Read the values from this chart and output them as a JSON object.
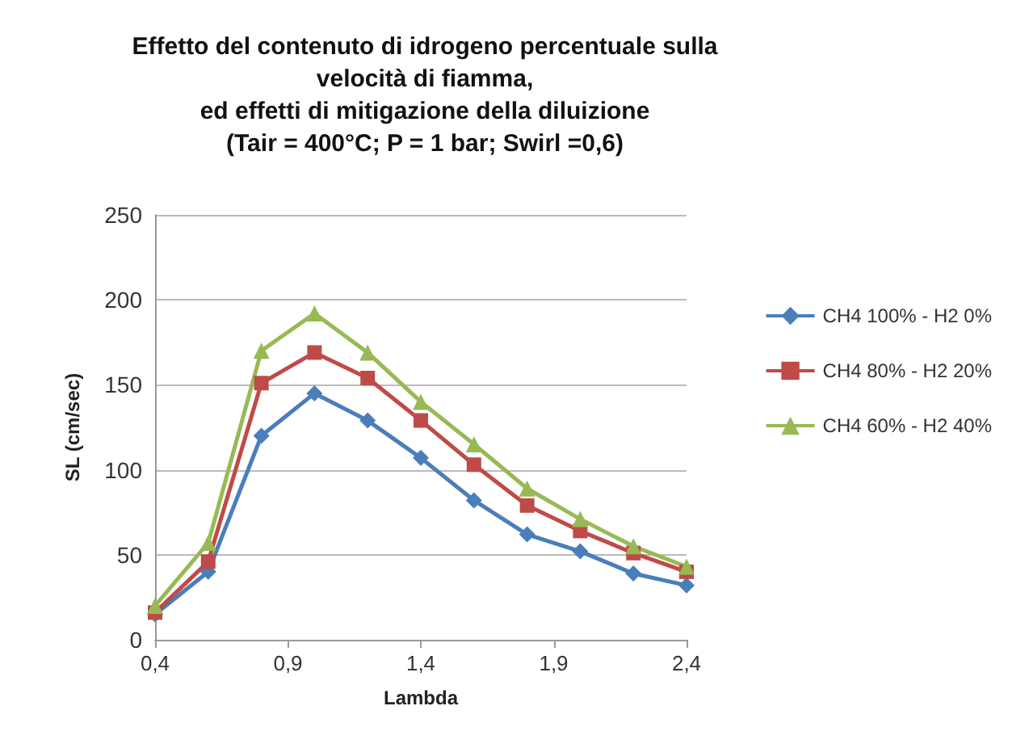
{
  "chart_data": {
    "type": "line",
    "title": "Effetto del contenuto di idrogeno percentuale sulla\nvelocità di fiamma,\ned effetti di mitigazione della diluizione\n(Tair = 400°C; P = 1 bar; Swirl =0,6)",
    "xlabel": "Lambda",
    "ylabel": "SL (cm/sec)",
    "x": [
      0.4,
      0.6,
      0.8,
      1.0,
      1.2,
      1.4,
      1.6,
      1.8,
      2.0,
      2.2,
      2.4
    ],
    "series": [
      {
        "name": "CH4 100% - H2 0%",
        "color": "#4a7ebb",
        "marker": "diamond",
        "values": [
          15,
          40,
          120,
          145,
          129,
          107,
          82,
          62,
          52,
          39,
          32
        ]
      },
      {
        "name": "CH4 80% - H2 20%",
        "color": "#be4b48",
        "marker": "square",
        "values": [
          16,
          46,
          151,
          169,
          154,
          129,
          103,
          79,
          64,
          51,
          40
        ]
      },
      {
        "name": "CH4 60% - H2 40%",
        "color": "#98b954",
        "marker": "triangle",
        "values": [
          20,
          57,
          170,
          192,
          169,
          140,
          115,
          89,
          71,
          55,
          43
        ]
      }
    ],
    "xlim": [
      0.4,
      2.4
    ],
    "xticks": [
      {
        "value": 0.4,
        "label": "0,4"
      },
      {
        "value": 0.9,
        "label": "0,9"
      },
      {
        "value": 1.4,
        "label": "1,4"
      },
      {
        "value": 1.9,
        "label": "1,9"
      },
      {
        "value": 2.4,
        "label": "2,4"
      }
    ],
    "ylim": [
      0,
      250
    ],
    "yticks": [
      0,
      50,
      100,
      150,
      200,
      250
    ],
    "grid": "y",
    "legend": "right"
  }
}
